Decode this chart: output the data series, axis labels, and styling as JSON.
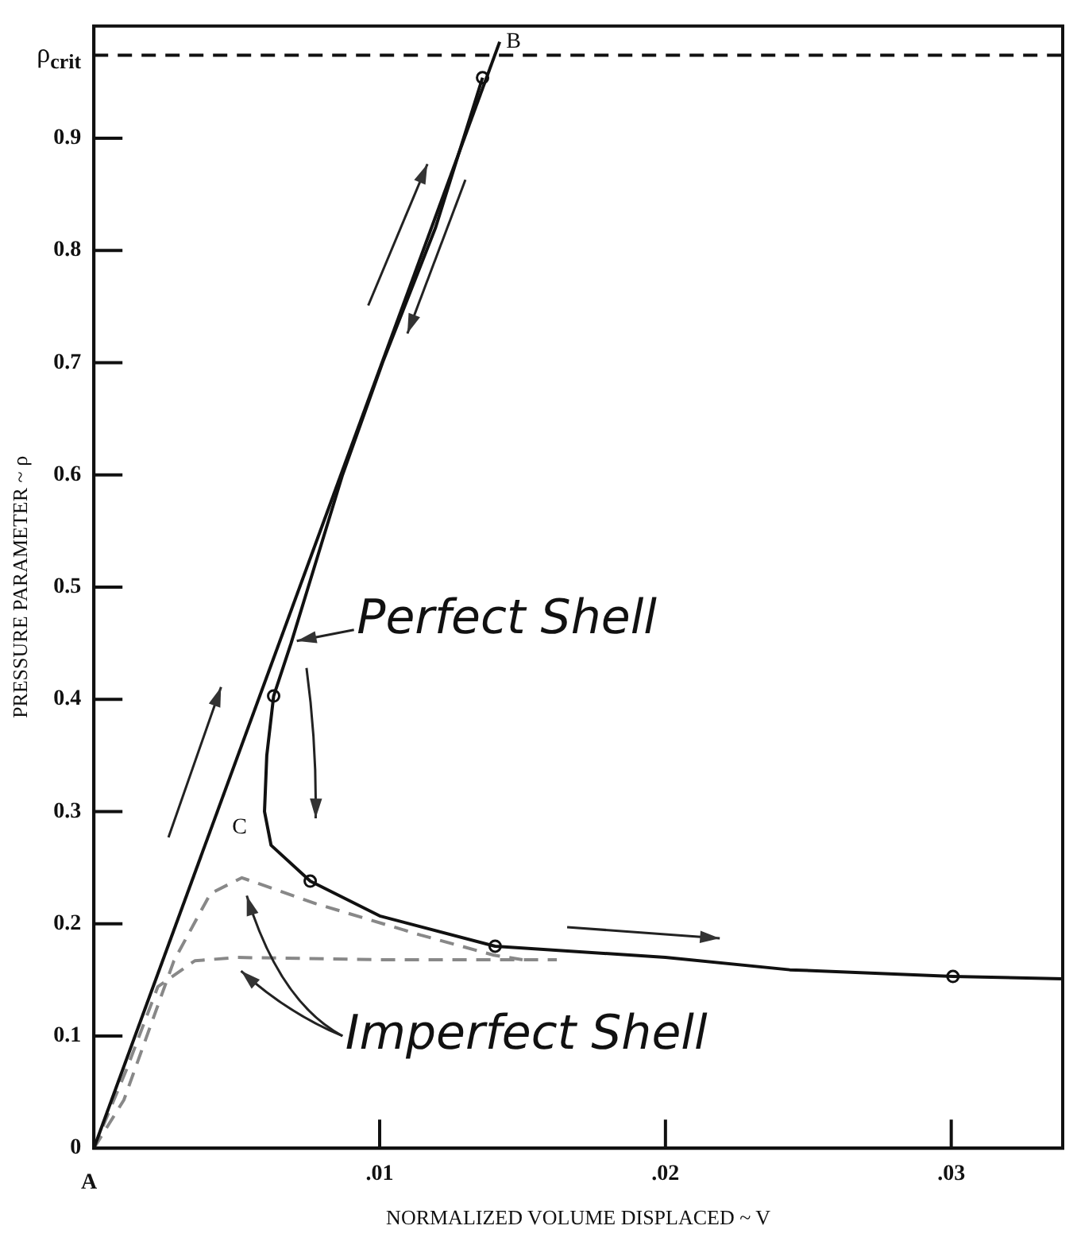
{
  "chart_data": {
    "type": "line",
    "xlabel": "NORMALIZED VOLUME DISPLACED ~ V",
    "ylabel": "PRESSURE PARAMETER ~ ρ",
    "xlim": [
      0,
      0.0339
    ],
    "ylim": [
      0,
      1.0
    ],
    "xticks": [
      {
        "value": 0.01,
        "label": ".01"
      },
      {
        "value": 0.02,
        "label": ".02"
      },
      {
        "value": 0.03,
        "label": ".03"
      }
    ],
    "yticks": [
      0,
      0.1,
      0.2,
      0.3,
      0.4,
      0.5,
      0.6,
      0.7,
      0.8,
      0.9
    ],
    "grid": false,
    "legend": false,
    "marker": "none",
    "series": [
      {
        "color": "#111111",
        "x": [
          0,
          0.0142
        ],
        "values": [
          0,
          0.986
        ]
      },
      {
        "color": "#111111",
        "x": [
          0.0136,
          0.01195,
          0.0101,
          0.0087,
          0.0075,
          0.0069,
          0.00629,
          0.00605,
          0.00597,
          0.0062,
          0.00757,
          0.01,
          0.01404,
          0.02,
          0.02435,
          0.03006,
          0.0339
        ],
        "values": [
          0.954,
          0.82,
          0.7,
          0.6,
          0.5,
          0.45,
          0.403,
          0.35,
          0.3,
          0.27,
          0.238,
          0.207,
          0.18,
          0.17,
          0.159,
          0.153,
          0.151
        ]
      },
      {
        "type": "scatter",
        "marker": "circle",
        "color": "#111111",
        "x": [
          0.0136,
          0.00629,
          0.00757,
          0.01404,
          0.03006
        ],
        "values": [
          0.954,
          0.403,
          0.238,
          0.18,
          0.153
        ]
      },
      {
        "color": "#888888",
        "line_style": "dashed",
        "x": [
          0,
          0.00105,
          0.0028,
          0.00408,
          0.00518,
          0.00776,
          0.01143,
          0.014,
          0.015
        ],
        "values": [
          0,
          0.043,
          0.167,
          0.227,
          0.241,
          0.218,
          0.19,
          0.172,
          0.168
        ]
      },
      {
        "color": "#888888",
        "line_style": "dashed",
        "x": [
          0,
          0.00114,
          0.00224,
          0.00353,
          0.005,
          0.01,
          0.0162
        ],
        "values": [
          0,
          0.07,
          0.144,
          0.167,
          0.17,
          0.168,
          0.168
        ]
      }
    ],
    "ref_lines": [
      {
        "axis": "y",
        "value": 0.974,
        "label": "ρ$_{crit}$",
        "line_style": "dashed",
        "color": "#111111"
      }
    ],
    "annotations": [
      {
        "text": "A",
        "x": 0,
        "y": 0
      },
      {
        "text": "B",
        "x": 0.0142,
        "y": 0.986
      },
      "C",
      "Perfect Shell",
      "Imperfect Shell"
    ]
  }
}
